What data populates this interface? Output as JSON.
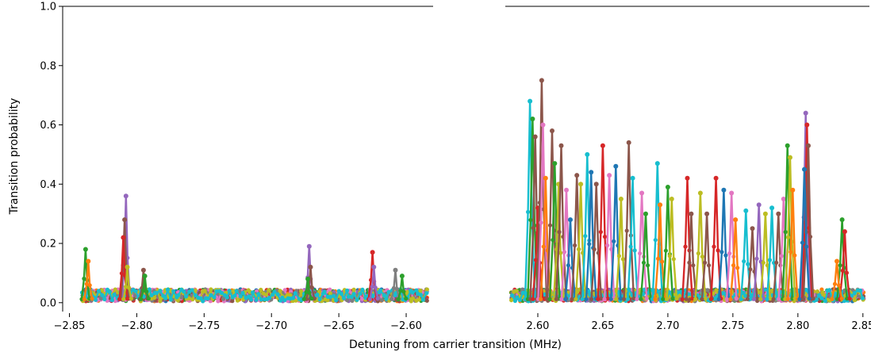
{
  "figure": {
    "ylabel": "Transition probability",
    "xlabel": "Detuning from carrier transition (MHz)"
  },
  "palette": [
    "#1f77b4",
    "#ff7f0e",
    "#2ca02c",
    "#d62728",
    "#9467bd",
    "#8c564b",
    "#e377c2",
    "#7f7f7f",
    "#bcbd22",
    "#17becf"
  ],
  "chart_data": [
    {
      "type": "line",
      "panel": "left",
      "xlim": [
        -2.855,
        -2.58
      ],
      "ylim": [
        -0.03,
        1.0
      ],
      "x_ticks": [
        -2.85,
        -2.8,
        -2.75,
        -2.7,
        -2.65,
        -2.6
      ],
      "x_tick_labels": [
        "−2.85",
        "−2.80",
        "−2.75",
        "−2.70",
        "−2.65",
        "−2.60"
      ],
      "y_ticks": [
        0.0,
        0.2,
        0.4,
        0.6,
        0.8,
        1.0
      ],
      "y_tick_labels": [
        "0.0",
        "0.2",
        "0.4",
        "0.6",
        "0.8",
        "1.0"
      ],
      "x_range": [
        -2.84,
        -2.585
      ],
      "baseline": 0.02,
      "baseline_spread": 0.04,
      "peaks": [
        {
          "x": -2.838,
          "y": 0.18,
          "color": "#2ca02c"
        },
        {
          "x": -2.836,
          "y": 0.14,
          "color": "#ff7f0e"
        },
        {
          "x": -2.808,
          "y": 0.36,
          "color": "#9467bd"
        },
        {
          "x": -2.809,
          "y": 0.28,
          "color": "#8c564b"
        },
        {
          "x": -2.81,
          "y": 0.22,
          "color": "#d62728"
        },
        {
          "x": -2.807,
          "y": 0.12,
          "color": "#bcbd22"
        },
        {
          "x": -2.795,
          "y": 0.11,
          "color": "#8c564b"
        },
        {
          "x": -2.794,
          "y": 0.09,
          "color": "#2ca02c"
        },
        {
          "x": -2.672,
          "y": 0.19,
          "color": "#9467bd"
        },
        {
          "x": -2.671,
          "y": 0.12,
          "color": "#8c564b"
        },
        {
          "x": -2.673,
          "y": 0.08,
          "color": "#2ca02c"
        },
        {
          "x": -2.625,
          "y": 0.17,
          "color": "#d62728"
        },
        {
          "x": -2.624,
          "y": 0.12,
          "color": "#9467bd"
        },
        {
          "x": -2.608,
          "y": 0.11,
          "color": "#7f7f7f"
        },
        {
          "x": -2.603,
          "y": 0.09,
          "color": "#2ca02c"
        }
      ]
    },
    {
      "type": "line",
      "panel": "right",
      "xlim": [
        2.575,
        2.855
      ],
      "ylim": [
        -0.03,
        1.0
      ],
      "x_ticks": [
        2.6,
        2.65,
        2.7,
        2.75,
        2.8,
        2.85
      ],
      "x_tick_labels": [
        "2.60",
        "2.65",
        "2.70",
        "2.75",
        "2.80",
        "2.85"
      ],
      "y_ticks": [
        0.0,
        0.2,
        0.4,
        0.6,
        0.8,
        1.0
      ],
      "y_tick_labels": [],
      "x_range": [
        2.58,
        2.85
      ],
      "baseline": 0.02,
      "baseline_spread": 0.04,
      "peaks": [
        {
          "x": 2.594,
          "y": 0.68,
          "color": "#17becf"
        },
        {
          "x": 2.596,
          "y": 0.62,
          "color": "#2ca02c"
        },
        {
          "x": 2.598,
          "y": 0.56,
          "color": "#8c564b"
        },
        {
          "x": 2.6,
          "y": 0.32,
          "color": "#d62728"
        },
        {
          "x": 2.603,
          "y": 0.75,
          "color": "#8c564b"
        },
        {
          "x": 2.604,
          "y": 0.6,
          "color": "#e377c2"
        },
        {
          "x": 2.606,
          "y": 0.42,
          "color": "#ff7f0e"
        },
        {
          "x": 2.611,
          "y": 0.58,
          "color": "#8c564b"
        },
        {
          "x": 2.613,
          "y": 0.47,
          "color": "#2ca02c"
        },
        {
          "x": 2.616,
          "y": 0.4,
          "color": "#bcbd22"
        },
        {
          "x": 2.618,
          "y": 0.53,
          "color": "#8c564b"
        },
        {
          "x": 2.622,
          "y": 0.38,
          "color": "#e377c2"
        },
        {
          "x": 2.625,
          "y": 0.28,
          "color": "#1f77b4"
        },
        {
          "x": 2.63,
          "y": 0.43,
          "color": "#8c564b"
        },
        {
          "x": 2.633,
          "y": 0.4,
          "color": "#bcbd22"
        },
        {
          "x": 2.638,
          "y": 0.5,
          "color": "#17becf"
        },
        {
          "x": 2.641,
          "y": 0.44,
          "color": "#1f77b4"
        },
        {
          "x": 2.645,
          "y": 0.4,
          "color": "#8c564b"
        },
        {
          "x": 2.65,
          "y": 0.53,
          "color": "#d62728"
        },
        {
          "x": 2.655,
          "y": 0.43,
          "color": "#e377c2"
        },
        {
          "x": 2.66,
          "y": 0.46,
          "color": "#1f77b4"
        },
        {
          "x": 2.664,
          "y": 0.35,
          "color": "#bcbd22"
        },
        {
          "x": 2.67,
          "y": 0.54,
          "color": "#8c564b"
        },
        {
          "x": 2.673,
          "y": 0.42,
          "color": "#17becf"
        },
        {
          "x": 2.68,
          "y": 0.37,
          "color": "#e377c2"
        },
        {
          "x": 2.683,
          "y": 0.3,
          "color": "#2ca02c"
        },
        {
          "x": 2.692,
          "y": 0.47,
          "color": "#17becf"
        },
        {
          "x": 2.694,
          "y": 0.33,
          "color": "#ff7f0e"
        },
        {
          "x": 2.7,
          "y": 0.39,
          "color": "#2ca02c"
        },
        {
          "x": 2.703,
          "y": 0.35,
          "color": "#bcbd22"
        },
        {
          "x": 2.715,
          "y": 0.42,
          "color": "#d62728"
        },
        {
          "x": 2.718,
          "y": 0.3,
          "color": "#8c564b"
        },
        {
          "x": 2.725,
          "y": 0.37,
          "color": "#bcbd22"
        },
        {
          "x": 2.73,
          "y": 0.3,
          "color": "#8c564b"
        },
        {
          "x": 2.737,
          "y": 0.42,
          "color": "#d62728"
        },
        {
          "x": 2.743,
          "y": 0.38,
          "color": "#1f77b4"
        },
        {
          "x": 2.749,
          "y": 0.37,
          "color": "#e377c2"
        },
        {
          "x": 2.752,
          "y": 0.28,
          "color": "#ff7f0e"
        },
        {
          "x": 2.76,
          "y": 0.31,
          "color": "#17becf"
        },
        {
          "x": 2.765,
          "y": 0.25,
          "color": "#8c564b"
        },
        {
          "x": 2.77,
          "y": 0.33,
          "color": "#9467bd"
        },
        {
          "x": 2.775,
          "y": 0.3,
          "color": "#bcbd22"
        },
        {
          "x": 2.78,
          "y": 0.32,
          "color": "#17becf"
        },
        {
          "x": 2.785,
          "y": 0.3,
          "color": "#8c564b"
        },
        {
          "x": 2.789,
          "y": 0.35,
          "color": "#e377c2"
        },
        {
          "x": 2.792,
          "y": 0.53,
          "color": "#2ca02c"
        },
        {
          "x": 2.794,
          "y": 0.49,
          "color": "#bcbd22"
        },
        {
          "x": 2.796,
          "y": 0.38,
          "color": "#ff7f0e"
        },
        {
          "x": 2.806,
          "y": 0.64,
          "color": "#9467bd"
        },
        {
          "x": 2.807,
          "y": 0.6,
          "color": "#d62728"
        },
        {
          "x": 2.808,
          "y": 0.53,
          "color": "#8c564b"
        },
        {
          "x": 2.805,
          "y": 0.45,
          "color": "#1f77b4"
        },
        {
          "x": 2.834,
          "y": 0.28,
          "color": "#2ca02c"
        },
        {
          "x": 2.836,
          "y": 0.24,
          "color": "#d62728"
        },
        {
          "x": 2.83,
          "y": 0.14,
          "color": "#ff7f0e"
        }
      ]
    }
  ]
}
